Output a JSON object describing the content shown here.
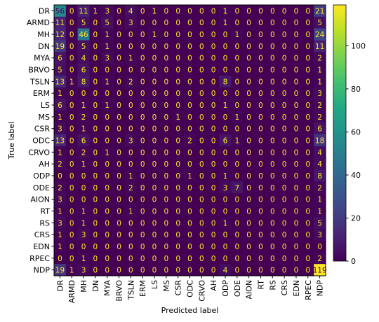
{
  "chart_data": {
    "type": "heatmap",
    "subtype": "confusion-matrix",
    "xlabel": "Predicted label",
    "ylabel": "True label",
    "labels": [
      "DR",
      "ARMD",
      "MH",
      "DN",
      "MYA",
      "BRVO",
      "TSLN",
      "ERM",
      "LS",
      "MS",
      "CSR",
      "ODC",
      "CRVO",
      "AH",
      "ODP",
      "ODE",
      "AION",
      "RT",
      "RS",
      "CRS",
      "EDN",
      "RPEC",
      "NDP"
    ],
    "matrix": [
      [
        56,
        0,
        11,
        1,
        3,
        0,
        4,
        0,
        1,
        0,
        0,
        0,
        0,
        0,
        1,
        0,
        0,
        0,
        0,
        0,
        0,
        0,
        21
      ],
      [
        11,
        0,
        5,
        0,
        5,
        0,
        3,
        0,
        0,
        0,
        0,
        0,
        0,
        0,
        1,
        0,
        0,
        0,
        0,
        0,
        0,
        0,
        5
      ],
      [
        12,
        0,
        46,
        0,
        1,
        0,
        0,
        0,
        1,
        0,
        0,
        0,
        0,
        0,
        0,
        1,
        0,
        0,
        0,
        0,
        0,
        0,
        24
      ],
      [
        19,
        0,
        5,
        0,
        1,
        0,
        0,
        0,
        0,
        0,
        0,
        0,
        0,
        0,
        0,
        0,
        0,
        0,
        0,
        0,
        0,
        0,
        11
      ],
      [
        6,
        0,
        4,
        0,
        3,
        0,
        1,
        0,
        0,
        0,
        0,
        0,
        0,
        0,
        0,
        0,
        0,
        0,
        0,
        0,
        0,
        0,
        2
      ],
      [
        5,
        0,
        6,
        0,
        0,
        0,
        0,
        0,
        0,
        0,
        0,
        0,
        0,
        0,
        0,
        0,
        0,
        0,
        0,
        0,
        0,
        0,
        1
      ],
      [
        13,
        1,
        8,
        0,
        1,
        0,
        2,
        0,
        0,
        0,
        0,
        0,
        0,
        0,
        8,
        0,
        0,
        0,
        0,
        0,
        0,
        0,
        1
      ],
      [
        1,
        0,
        0,
        0,
        0,
        0,
        0,
        0,
        0,
        0,
        0,
        0,
        0,
        0,
        0,
        0,
        0,
        0,
        0,
        0,
        0,
        0,
        3
      ],
      [
        6,
        0,
        1,
        0,
        1,
        0,
        0,
        0,
        0,
        0,
        0,
        0,
        0,
        0,
        1,
        0,
        0,
        0,
        0,
        0,
        0,
        0,
        2
      ],
      [
        1,
        0,
        2,
        0,
        0,
        0,
        0,
        0,
        0,
        0,
        1,
        0,
        0,
        0,
        0,
        1,
        0,
        0,
        0,
        0,
        0,
        0,
        2
      ],
      [
        3,
        0,
        1,
        0,
        0,
        0,
        0,
        0,
        0,
        0,
        0,
        0,
        0,
        0,
        0,
        0,
        0,
        0,
        0,
        0,
        0,
        0,
        6
      ],
      [
        13,
        0,
        6,
        0,
        0,
        0,
        3,
        0,
        0,
        0,
        0,
        2,
        0,
        0,
        6,
        1,
        0,
        0,
        0,
        0,
        0,
        0,
        18
      ],
      [
        1,
        0,
        2,
        0,
        1,
        0,
        0,
        0,
        0,
        0,
        0,
        0,
        0,
        0,
        0,
        0,
        0,
        0,
        0,
        0,
        0,
        0,
        4
      ],
      [
        2,
        0,
        1,
        0,
        0,
        0,
        0,
        0,
        0,
        0,
        0,
        0,
        0,
        0,
        0,
        0,
        0,
        0,
        0,
        0,
        0,
        0,
        4
      ],
      [
        0,
        0,
        0,
        0,
        0,
        0,
        1,
        0,
        0,
        0,
        0,
        1,
        0,
        0,
        1,
        0,
        0,
        0,
        0,
        0,
        0,
        0,
        8
      ],
      [
        2,
        0,
        0,
        0,
        0,
        0,
        2,
        0,
        0,
        0,
        0,
        0,
        0,
        0,
        3,
        7,
        0,
        0,
        0,
        0,
        0,
        0,
        2
      ],
      [
        3,
        0,
        0,
        0,
        0,
        0,
        0,
        0,
        0,
        0,
        0,
        0,
        0,
        0,
        0,
        0,
        0,
        0,
        0,
        0,
        0,
        0,
        1
      ],
      [
        1,
        0,
        1,
        0,
        0,
        0,
        1,
        0,
        0,
        0,
        0,
        0,
        0,
        0,
        0,
        0,
        0,
        0,
        0,
        0,
        0,
        0,
        1
      ],
      [
        3,
        0,
        1,
        0,
        0,
        0,
        0,
        0,
        0,
        0,
        0,
        0,
        0,
        0,
        1,
        0,
        0,
        0,
        0,
        0,
        0,
        0,
        5
      ],
      [
        1,
        0,
        3,
        0,
        0,
        0,
        0,
        0,
        0,
        0,
        0,
        0,
        0,
        0,
        0,
        0,
        0,
        0,
        0,
        0,
        0,
        0,
        3
      ],
      [
        1,
        0,
        0,
        0,
        0,
        0,
        0,
        0,
        0,
        0,
        0,
        0,
        0,
        0,
        0,
        0,
        0,
        0,
        0,
        0,
        0,
        0,
        0
      ],
      [
        0,
        0,
        1,
        0,
        0,
        0,
        0,
        0,
        0,
        0,
        0,
        0,
        0,
        0,
        0,
        0,
        0,
        0,
        0,
        0,
        0,
        0,
        2
      ],
      [
        19,
        1,
        3,
        0,
        0,
        0,
        0,
        0,
        0,
        0,
        0,
        0,
        0,
        0,
        4,
        0,
        0,
        0,
        0,
        0,
        0,
        0,
        119
      ]
    ],
    "colormap": "viridis",
    "vmin": 0,
    "vmax": 119,
    "colorbar_ticks": [
      0,
      20,
      40,
      60,
      80,
      100
    ],
    "grid": false,
    "legend": "colorbar-right"
  }
}
